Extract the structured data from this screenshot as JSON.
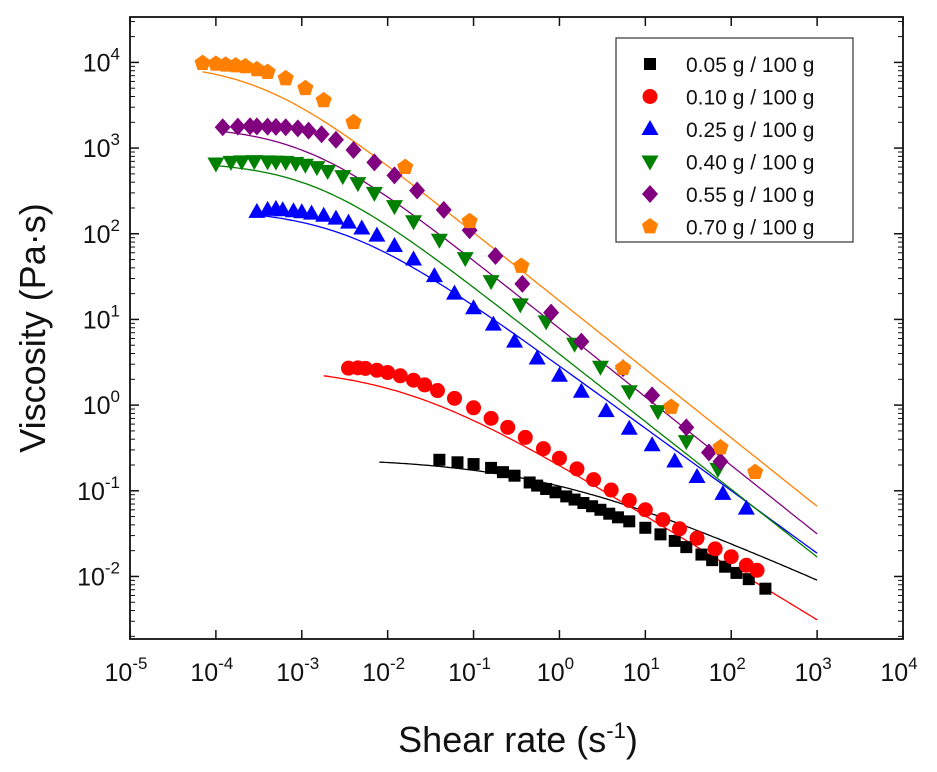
{
  "chart_data": {
    "type": "scatter",
    "title": "",
    "xlabel": "Shear rate (s",
    "xlabel_sup": "-1",
    "xlabel_close": ")",
    "ylabel": "Viscosity (Pa·s)",
    "xscale": "log",
    "yscale": "log",
    "xlim_exp": [
      -5,
      4
    ],
    "ylim_exp": [
      -2.73,
      4.53
    ],
    "x_tick_labels": [
      {
        "base": "10",
        "exp": "-5"
      },
      {
        "base": "10",
        "exp": "-4"
      },
      {
        "base": "10",
        "exp": "-3"
      },
      {
        "base": "10",
        "exp": "-2"
      },
      {
        "base": "10",
        "exp": "-1"
      },
      {
        "base": "10",
        "exp": "0"
      },
      {
        "base": "10",
        "exp": "1"
      },
      {
        "base": "10",
        "exp": "2"
      },
      {
        "base": "10",
        "exp": "3"
      },
      {
        "base": "10",
        "exp": "4"
      }
    ],
    "y_tick_labels": [
      {
        "base": "10",
        "exp": "-2"
      },
      {
        "base": "10",
        "exp": "-1"
      },
      {
        "base": "10",
        "exp": "0"
      },
      {
        "base": "10",
        "exp": "1"
      },
      {
        "base": "10",
        "exp": "2"
      },
      {
        "base": "10",
        "exp": "3"
      },
      {
        "base": "10",
        "exp": "4"
      }
    ],
    "legend_position": "top-right",
    "series": [
      {
        "name": "0.05 g / 100 g",
        "marker": "square",
        "color": "#000000",
        "points": [
          [
            0.04,
            0.23
          ],
          [
            0.065,
            0.215
          ],
          [
            0.1,
            0.205
          ],
          [
            0.16,
            0.185
          ],
          [
            0.22,
            0.165
          ],
          [
            0.3,
            0.15
          ],
          [
            0.45,
            0.125
          ],
          [
            0.55,
            0.115
          ],
          [
            0.7,
            0.105
          ],
          [
            0.9,
            0.096
          ],
          [
            1.2,
            0.086
          ],
          [
            1.5,
            0.079
          ],
          [
            1.9,
            0.072
          ],
          [
            2.4,
            0.066
          ],
          [
            3.0,
            0.06
          ],
          [
            3.8,
            0.054
          ],
          [
            4.8,
            0.049
          ],
          [
            6.5,
            0.044
          ],
          [
            10,
            0.037
          ],
          [
            15,
            0.031
          ],
          [
            22,
            0.026
          ],
          [
            30,
            0.022
          ],
          [
            45,
            0.018
          ],
          [
            60,
            0.0155
          ],
          [
            85,
            0.013
          ],
          [
            115,
            0.011
          ],
          [
            160,
            0.0093
          ],
          [
            250,
            0.0072
          ]
        ],
        "fit": {
          "eta0": 0.245,
          "eta_inf": 0,
          "lambda": 1.4,
          "n": 0.55,
          "x_range": [
            0.008,
            1000
          ]
        }
      },
      {
        "name": "0.10 g / 100 g",
        "marker": "circle",
        "color": "#ff0000",
        "points": [
          [
            0.0035,
            2.7
          ],
          [
            0.0045,
            2.72
          ],
          [
            0.0055,
            2.68
          ],
          [
            0.0075,
            2.55
          ],
          [
            0.01,
            2.4
          ],
          [
            0.014,
            2.2
          ],
          [
            0.02,
            1.95
          ],
          [
            0.027,
            1.72
          ],
          [
            0.038,
            1.48
          ],
          [
            0.06,
            1.2
          ],
          [
            0.1,
            0.93
          ],
          [
            0.16,
            0.7
          ],
          [
            0.25,
            0.55
          ],
          [
            0.4,
            0.42
          ],
          [
            0.65,
            0.31
          ],
          [
            1.0,
            0.24
          ],
          [
            1.6,
            0.18
          ],
          [
            2.5,
            0.135
          ],
          [
            4.0,
            0.102
          ],
          [
            6.5,
            0.077
          ],
          [
            10,
            0.06
          ],
          [
            16,
            0.046
          ],
          [
            25,
            0.036
          ],
          [
            40,
            0.028
          ],
          [
            65,
            0.021
          ],
          [
            100,
            0.017
          ],
          [
            150,
            0.0135
          ],
          [
            200,
            0.0118
          ]
        ],
        "fit": {
          "eta0": 2.82,
          "eta_inf": 0,
          "lambda": 70,
          "n": 0.39,
          "x_range": [
            0.0018,
            1000
          ]
        }
      },
      {
        "name": "0.25 g / 100 g",
        "marker": "triangle-up",
        "color": "#0000ff",
        "points": [
          [
            0.0003,
            180
          ],
          [
            0.0004,
            190
          ],
          [
            0.0005,
            195
          ],
          [
            0.0006,
            188
          ],
          [
            0.0008,
            183
          ],
          [
            0.001,
            178
          ],
          [
            0.0013,
            172
          ],
          [
            0.0018,
            162
          ],
          [
            0.0025,
            150
          ],
          [
            0.0035,
            135
          ],
          [
            0.005,
            115
          ],
          [
            0.0075,
            95
          ],
          [
            0.012,
            72
          ],
          [
            0.02,
            50
          ],
          [
            0.035,
            32
          ],
          [
            0.06,
            20
          ],
          [
            0.1,
            13.5
          ],
          [
            0.17,
            8.7
          ],
          [
            0.3,
            5.5
          ],
          [
            0.55,
            3.5
          ],
          [
            1.0,
            2.2
          ],
          [
            1.8,
            1.43
          ],
          [
            3.5,
            0.85
          ],
          [
            6.5,
            0.53
          ],
          [
            12,
            0.34
          ],
          [
            22,
            0.22
          ],
          [
            40,
            0.145
          ],
          [
            80,
            0.092
          ],
          [
            150,
            0.062
          ]
        ],
        "fit": {
          "eta0": 195,
          "eta_inf": 0,
          "lambda": 320,
          "n": 0.27,
          "x_range": [
            0.0003,
            1000
          ]
        }
      },
      {
        "name": "0.40 g / 100 g",
        "marker": "triangle-down",
        "color": "#008000",
        "points": [
          [
            0.0001,
            660
          ],
          [
            0.00015,
            690
          ],
          [
            0.0002,
            700
          ],
          [
            0.00028,
            705
          ],
          [
            0.0004,
            700
          ],
          [
            0.0005,
            695
          ],
          [
            0.00065,
            690
          ],
          [
            0.00085,
            670
          ],
          [
            0.0011,
            640
          ],
          [
            0.0015,
            600
          ],
          [
            0.002,
            540
          ],
          [
            0.003,
            470
          ],
          [
            0.0045,
            390
          ],
          [
            0.007,
            300
          ],
          [
            0.012,
            210
          ],
          [
            0.02,
            140
          ],
          [
            0.04,
            85
          ],
          [
            0.08,
            52
          ],
          [
            0.16,
            28
          ],
          [
            0.35,
            15
          ],
          [
            0.7,
            9.5
          ],
          [
            1.5,
            5.2
          ],
          [
            3,
            2.8
          ],
          [
            6.5,
            1.45
          ],
          [
            14,
            0.85
          ],
          [
            30,
            0.38
          ],
          [
            70,
            0.18
          ]
        ],
        "fit": {
          "eta0": 700,
          "eta_inf": 0,
          "lambda": 700,
          "n": 0.21,
          "x_range": [
            0.0001,
            1000
          ]
        }
      },
      {
        "name": "0.55 g / 100 g",
        "marker": "diamond",
        "color": "#800080",
        "points": [
          [
            0.00012,
            1750
          ],
          [
            0.00018,
            1780
          ],
          [
            0.00025,
            1800
          ],
          [
            0.0003,
            1790
          ],
          [
            0.0004,
            1780
          ],
          [
            0.0005,
            1770
          ],
          [
            0.00065,
            1750
          ],
          [
            0.0009,
            1700
          ],
          [
            0.0012,
            1600
          ],
          [
            0.0017,
            1450
          ],
          [
            0.0025,
            1250
          ],
          [
            0.004,
            950
          ],
          [
            0.007,
            680
          ],
          [
            0.012,
            480
          ],
          [
            0.022,
            320
          ],
          [
            0.045,
            190
          ],
          [
            0.09,
            110
          ],
          [
            0.18,
            55
          ],
          [
            0.37,
            26
          ],
          [
            0.8,
            12
          ],
          [
            1.8,
            5.5
          ],
          [
            5.5,
            2.7
          ],
          [
            12,
            1.3
          ],
          [
            30,
            0.55
          ],
          [
            55,
            0.28
          ],
          [
            75,
            0.22
          ]
        ],
        "fit": {
          "eta0": 1820,
          "eta_inf": 0,
          "lambda": 900,
          "n": 0.2,
          "x_range": [
            0.00012,
            1000
          ]
        }
      },
      {
        "name": "0.70 g / 100 g",
        "marker": "pentagon",
        "color": "#ff8000",
        "points": [
          [
            7e-05,
            9800
          ],
          [
            0.0001,
            9600
          ],
          [
            0.00013,
            9400
          ],
          [
            0.00017,
            9200
          ],
          [
            0.00022,
            9000
          ],
          [
            0.0003,
            8300
          ],
          [
            0.0004,
            7700
          ],
          [
            0.00065,
            6500
          ],
          [
            0.0011,
            5000
          ],
          [
            0.0018,
            3600
          ],
          [
            0.004,
            2000
          ],
          [
            0.016,
            600
          ],
          [
            0.09,
            140
          ],
          [
            0.36,
            42
          ],
          [
            5.5,
            2.7
          ],
          [
            20,
            0.95
          ],
          [
            75,
            0.32
          ],
          [
            190,
            0.165
          ]
        ],
        "fit": {
          "eta0": 10000,
          "eta_inf": 0,
          "lambda": 3000,
          "n": 0.2,
          "x_range": [
            7e-05,
            1000
          ]
        }
      }
    ]
  }
}
